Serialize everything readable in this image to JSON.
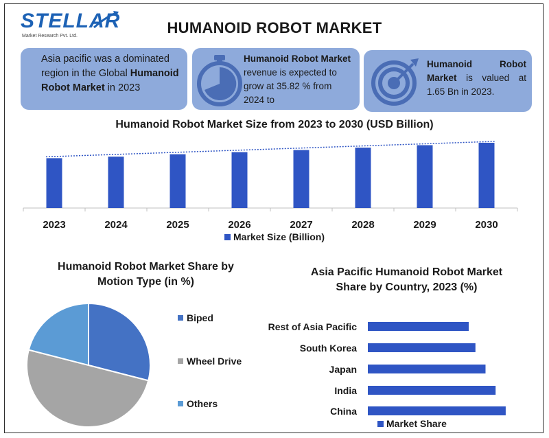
{
  "header": {
    "logo_text": "STELLAR",
    "logo_subtext": "Market Research Pvt. Ltd.",
    "title": "HUMANOID ROBOT MARKET"
  },
  "cards": {
    "card1": {
      "pre": "Asia pacific was a dominated region in the Global ",
      "bold": "Humanoid Robot Market",
      "post": " in 2023"
    },
    "card2": {
      "bold": "Humanoid Robot Market",
      "post": " revenue is expected to grow at 35.82 % from 2024 to",
      "icon": "stopwatch-icon"
    },
    "card3": {
      "bold": "Humanoid Robot Market",
      "post": " is valued at 1.65 Bn in 2023.",
      "icon": "target-icon"
    }
  },
  "colors": {
    "bar": "#2f55c4",
    "card": "#8eaadb",
    "pie_biped": "#4472c4",
    "pie_wheel": "#a5a5a5",
    "pie_others": "#5b9bd5"
  },
  "chart_data": [
    {
      "type": "bar",
      "title": "Humanoid Robot Market Size from 2023 to 2030 (USD Billion)",
      "categories": [
        "2023",
        "2024",
        "2025",
        "2026",
        "2027",
        "2028",
        "2029",
        "2030"
      ],
      "series": [
        {
          "name": "Market Size (Billion)",
          "values": [
            1.65,
            1.7,
            1.78,
            1.85,
            1.92,
            2.0,
            2.08,
            2.16
          ]
        }
      ],
      "trendline": "linear dotted",
      "legend": "bottom"
    },
    {
      "type": "pie",
      "title": "Humanoid Robot Market Share by Motion Type (in %)",
      "labels": [
        "Biped",
        "Wheel Drive",
        "Others"
      ],
      "values": [
        29,
        50,
        21
      ],
      "legend": "right"
    },
    {
      "type": "bar",
      "orientation": "horizontal",
      "title": "Asia Pacific Humanoid Robot Market Share by Country, 2023 (%)",
      "categories": [
        "Rest of Asia Pacific",
        "South Korea",
        "Japan",
        "India",
        "China"
      ],
      "series": [
        {
          "name": "Market Share",
          "values": [
            15,
            16,
            17.5,
            19,
            20.5
          ]
        }
      ],
      "legend": "bottom"
    }
  ]
}
